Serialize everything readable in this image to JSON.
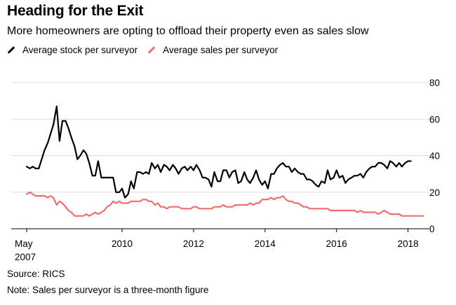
{
  "header": {
    "title": "Heading for the Exit",
    "subtitle": "More homeowners are opting to offload their property even as sales slow"
  },
  "footer": {
    "source": "Source: RICS",
    "note": "Note: Sales per surveyor is a three-month figure"
  },
  "colors": {
    "stock": "#000000",
    "sales": "#f26d6d",
    "grid": "#dcdcdc"
  },
  "chart_data": {
    "type": "line",
    "title": "Heading for the Exit",
    "subtitle": "More homeowners are opting to offload their property even as sales slow",
    "xlabel": "",
    "ylabel": "",
    "x_range": [
      2007.33,
      2018.42
    ],
    "ylim": [
      0,
      80
    ],
    "yticks": [
      0,
      20,
      40,
      60,
      80
    ],
    "ytick_labels": [
      "0",
      "20",
      "40",
      "60",
      "80"
    ],
    "xticks": [
      2007.33,
      2010,
      2012,
      2014,
      2016,
      2018
    ],
    "xtick_labels": [
      "May\n2007",
      "2010",
      "2012",
      "2014",
      "2016",
      "2018"
    ],
    "grid": true,
    "legend_position": "top-left",
    "series": [
      {
        "name": "Average stock per surveyor",
        "color_key": "stock",
        "points": [
          [
            2007.33,
            34
          ],
          [
            2007.42,
            33
          ],
          [
            2007.5,
            34
          ],
          [
            2007.58,
            33
          ],
          [
            2007.67,
            33
          ],
          [
            2007.75,
            38
          ],
          [
            2007.83,
            43
          ],
          [
            2007.92,
            47
          ],
          [
            2008.0,
            52
          ],
          [
            2008.08,
            57
          ],
          [
            2008.17,
            67
          ],
          [
            2008.25,
            48
          ],
          [
            2008.33,
            59
          ],
          [
            2008.42,
            59
          ],
          [
            2008.5,
            55
          ],
          [
            2008.58,
            50
          ],
          [
            2008.67,
            45
          ],
          [
            2008.75,
            38
          ],
          [
            2008.83,
            40
          ],
          [
            2008.92,
            43
          ],
          [
            2009.0,
            41
          ],
          [
            2009.08,
            36
          ],
          [
            2009.17,
            29
          ],
          [
            2009.25,
            29
          ],
          [
            2009.33,
            37
          ],
          [
            2009.42,
            28
          ],
          [
            2009.5,
            28
          ],
          [
            2009.58,
            28
          ],
          [
            2009.67,
            28
          ],
          [
            2009.75,
            28
          ],
          [
            2009.83,
            20
          ],
          [
            2009.92,
            20
          ],
          [
            2010.0,
            22
          ],
          [
            2010.08,
            17
          ],
          [
            2010.17,
            19
          ],
          [
            2010.25,
            26
          ],
          [
            2010.33,
            22
          ],
          [
            2010.42,
            31
          ],
          [
            2010.5,
            31
          ],
          [
            2010.58,
            30
          ],
          [
            2010.67,
            31
          ],
          [
            2010.75,
            30
          ],
          [
            2010.83,
            36
          ],
          [
            2010.92,
            33
          ],
          [
            2011.0,
            35
          ],
          [
            2011.08,
            31
          ],
          [
            2011.17,
            35
          ],
          [
            2011.25,
            34
          ],
          [
            2011.33,
            32
          ],
          [
            2011.42,
            35
          ],
          [
            2011.5,
            33
          ],
          [
            2011.58,
            30
          ],
          [
            2011.67,
            33
          ],
          [
            2011.75,
            34
          ],
          [
            2011.83,
            32
          ],
          [
            2011.92,
            34
          ],
          [
            2012.0,
            32
          ],
          [
            2012.08,
            35
          ],
          [
            2012.17,
            32
          ],
          [
            2012.25,
            28
          ],
          [
            2012.33,
            28
          ],
          [
            2012.42,
            27
          ],
          [
            2012.5,
            23
          ],
          [
            2012.58,
            31
          ],
          [
            2012.67,
            26
          ],
          [
            2012.75,
            26
          ],
          [
            2012.83,
            32
          ],
          [
            2012.92,
            32
          ],
          [
            2013.0,
            28
          ],
          [
            2013.08,
            31
          ],
          [
            2013.17,
            32
          ],
          [
            2013.25,
            25
          ],
          [
            2013.33,
            26
          ],
          [
            2013.42,
            31
          ],
          [
            2013.5,
            27
          ],
          [
            2013.58,
            25
          ],
          [
            2013.67,
            28
          ],
          [
            2013.75,
            32
          ],
          [
            2013.83,
            27
          ],
          [
            2013.92,
            24
          ],
          [
            2014.0,
            26
          ],
          [
            2014.08,
            22
          ],
          [
            2014.17,
            30
          ],
          [
            2014.25,
            30
          ],
          [
            2014.33,
            33
          ],
          [
            2014.42,
            35
          ],
          [
            2014.5,
            36
          ],
          [
            2014.58,
            34
          ],
          [
            2014.67,
            34
          ],
          [
            2014.75,
            31
          ],
          [
            2014.83,
            33
          ],
          [
            2014.92,
            31
          ],
          [
            2015.0,
            30
          ],
          [
            2015.08,
            30
          ],
          [
            2015.17,
            27
          ],
          [
            2015.25,
            27
          ],
          [
            2015.33,
            26
          ],
          [
            2015.42,
            24
          ],
          [
            2015.5,
            23
          ],
          [
            2015.58,
            26
          ],
          [
            2015.67,
            25
          ],
          [
            2015.75,
            32
          ],
          [
            2015.83,
            27
          ],
          [
            2015.92,
            28
          ],
          [
            2016.0,
            32
          ],
          [
            2016.08,
            28
          ],
          [
            2016.17,
            29
          ],
          [
            2016.25,
            25
          ],
          [
            2016.33,
            27
          ],
          [
            2016.42,
            28
          ],
          [
            2016.5,
            29
          ],
          [
            2016.58,
            29
          ],
          [
            2016.67,
            30
          ],
          [
            2016.75,
            28
          ],
          [
            2016.83,
            31
          ],
          [
            2016.92,
            33
          ],
          [
            2017.0,
            34
          ],
          [
            2017.08,
            34
          ],
          [
            2017.17,
            36
          ],
          [
            2017.25,
            36
          ],
          [
            2017.33,
            35
          ],
          [
            2017.42,
            33
          ],
          [
            2017.5,
            37
          ],
          [
            2017.58,
            36
          ],
          [
            2017.67,
            34
          ],
          [
            2017.75,
            36
          ],
          [
            2017.83,
            34
          ],
          [
            2017.92,
            36
          ],
          [
            2018.0,
            37
          ],
          [
            2018.08,
            37
          ]
        ]
      },
      {
        "name": "Average sales per surveyor",
        "color_key": "sales",
        "points": [
          [
            2007.33,
            19
          ],
          [
            2007.42,
            20
          ],
          [
            2007.5,
            19
          ],
          [
            2007.58,
            18
          ],
          [
            2007.67,
            18
          ],
          [
            2007.75,
            18
          ],
          [
            2007.83,
            18
          ],
          [
            2007.92,
            17
          ],
          [
            2008.0,
            18
          ],
          [
            2008.08,
            17
          ],
          [
            2008.17,
            13
          ],
          [
            2008.25,
            15
          ],
          [
            2008.33,
            14
          ],
          [
            2008.42,
            12
          ],
          [
            2008.5,
            10
          ],
          [
            2008.58,
            9
          ],
          [
            2008.67,
            7
          ],
          [
            2008.75,
            7
          ],
          [
            2008.83,
            7
          ],
          [
            2008.92,
            7
          ],
          [
            2009.0,
            8
          ],
          [
            2009.08,
            7
          ],
          [
            2009.17,
            8
          ],
          [
            2009.25,
            9
          ],
          [
            2009.33,
            8
          ],
          [
            2009.42,
            9
          ],
          [
            2009.5,
            10
          ],
          [
            2009.58,
            12
          ],
          [
            2009.67,
            13
          ],
          [
            2009.75,
            15
          ],
          [
            2009.83,
            14
          ],
          [
            2009.92,
            15
          ],
          [
            2010.0,
            14
          ],
          [
            2010.08,
            14
          ],
          [
            2010.17,
            14
          ],
          [
            2010.25,
            15
          ],
          [
            2010.33,
            15
          ],
          [
            2010.42,
            15
          ],
          [
            2010.5,
            15
          ],
          [
            2010.58,
            16
          ],
          [
            2010.67,
            16
          ],
          [
            2010.75,
            15
          ],
          [
            2010.83,
            15
          ],
          [
            2010.92,
            13
          ],
          [
            2011.0,
            14
          ],
          [
            2011.08,
            12
          ],
          [
            2011.17,
            12
          ],
          [
            2011.25,
            11
          ],
          [
            2011.33,
            12
          ],
          [
            2011.42,
            12
          ],
          [
            2011.5,
            12
          ],
          [
            2011.58,
            12
          ],
          [
            2011.67,
            11
          ],
          [
            2011.75,
            11
          ],
          [
            2011.83,
            11
          ],
          [
            2011.92,
            11
          ],
          [
            2012.0,
            12
          ],
          [
            2012.08,
            12
          ],
          [
            2012.17,
            11
          ],
          [
            2012.25,
            11
          ],
          [
            2012.33,
            11
          ],
          [
            2012.42,
            11
          ],
          [
            2012.5,
            11
          ],
          [
            2012.58,
            12
          ],
          [
            2012.67,
            12
          ],
          [
            2012.75,
            12
          ],
          [
            2012.83,
            13
          ],
          [
            2012.92,
            12
          ],
          [
            2013.0,
            12
          ],
          [
            2013.08,
            12
          ],
          [
            2013.17,
            13
          ],
          [
            2013.25,
            13
          ],
          [
            2013.33,
            13
          ],
          [
            2013.42,
            13
          ],
          [
            2013.5,
            13
          ],
          [
            2013.58,
            14
          ],
          [
            2013.67,
            13
          ],
          [
            2013.75,
            14
          ],
          [
            2013.83,
            14
          ],
          [
            2013.92,
            16
          ],
          [
            2014.0,
            16
          ],
          [
            2014.08,
            16
          ],
          [
            2014.17,
            17
          ],
          [
            2014.25,
            16
          ],
          [
            2014.33,
            17
          ],
          [
            2014.42,
            17
          ],
          [
            2014.5,
            18
          ],
          [
            2014.58,
            16
          ],
          [
            2014.67,
            15
          ],
          [
            2014.75,
            15
          ],
          [
            2014.83,
            14
          ],
          [
            2014.92,
            14
          ],
          [
            2015.0,
            13
          ],
          [
            2015.08,
            12
          ],
          [
            2015.17,
            12
          ],
          [
            2015.25,
            11
          ],
          [
            2015.33,
            11
          ],
          [
            2015.42,
            11
          ],
          [
            2015.5,
            11
          ],
          [
            2015.58,
            11
          ],
          [
            2015.67,
            11
          ],
          [
            2015.75,
            11
          ],
          [
            2015.83,
            10
          ],
          [
            2015.92,
            10
          ],
          [
            2016.0,
            10
          ],
          [
            2016.08,
            10
          ],
          [
            2016.17,
            10
          ],
          [
            2016.25,
            10
          ],
          [
            2016.33,
            10
          ],
          [
            2016.42,
            10
          ],
          [
            2016.5,
            10
          ],
          [
            2016.58,
            9
          ],
          [
            2016.67,
            10
          ],
          [
            2016.75,
            9
          ],
          [
            2016.83,
            9
          ],
          [
            2016.92,
            9
          ],
          [
            2017.0,
            9
          ],
          [
            2017.08,
            9
          ],
          [
            2017.17,
            8
          ],
          [
            2017.25,
            9
          ],
          [
            2017.33,
            10
          ],
          [
            2017.42,
            9
          ],
          [
            2017.5,
            8
          ],
          [
            2017.58,
            8
          ],
          [
            2017.67,
            8
          ],
          [
            2017.75,
            8
          ],
          [
            2017.83,
            7
          ],
          [
            2017.92,
            7
          ],
          [
            2018.0,
            7
          ],
          [
            2018.08,
            7
          ],
          [
            2018.17,
            7
          ],
          [
            2018.25,
            7
          ],
          [
            2018.33,
            7
          ],
          [
            2018.42,
            7
          ]
        ]
      }
    ]
  }
}
